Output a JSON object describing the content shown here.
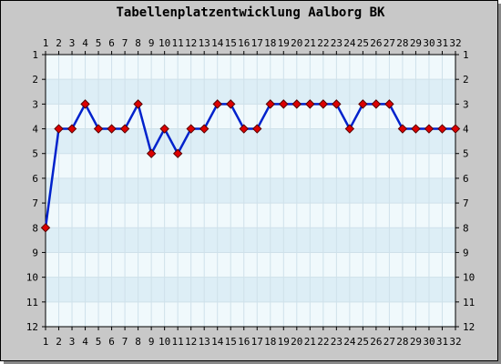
{
  "chart_data": {
    "type": "line",
    "title": "Tabellenplatzentwicklung Aalborg BK",
    "xlabel": "",
    "ylabel": "",
    "x": [
      1,
      2,
      3,
      4,
      5,
      6,
      7,
      8,
      9,
      10,
      11,
      12,
      13,
      14,
      15,
      16,
      17,
      18,
      19,
      20,
      21,
      22,
      23,
      24,
      25,
      26,
      27,
      28,
      29,
      30,
      31,
      32
    ],
    "xlim": [
      1,
      32
    ],
    "ylim": [
      1,
      12
    ],
    "y_inverted": true,
    "y_ticks": [
      1,
      2,
      3,
      4,
      5,
      6,
      7,
      8,
      9,
      10,
      11,
      12
    ],
    "series": [
      {
        "name": "",
        "values": [
          8,
          4,
          4,
          3,
          4,
          4,
          4,
          3,
          5,
          4,
          5,
          4,
          4,
          3,
          3,
          4,
          4,
          3,
          3,
          3,
          3,
          3,
          3,
          4,
          3,
          3,
          3,
          4,
          4,
          4,
          4,
          4
        ]
      }
    ],
    "grid": true,
    "legend": "none",
    "colors": {
      "line": "#0022cc",
      "marker_fill": "#dd0000",
      "marker_stroke": "#550000",
      "band_light": "#f0f9fc",
      "band_dark": "#ddeef6",
      "background": "#c8c8c8"
    }
  }
}
